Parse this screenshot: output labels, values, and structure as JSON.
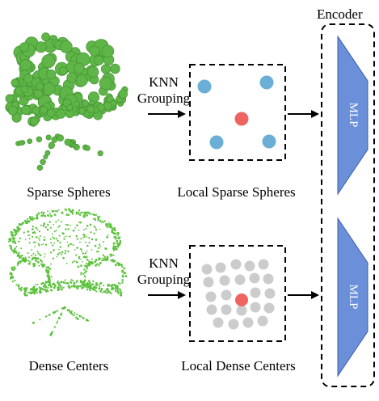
{
  "encoder": {
    "title": "Encoder",
    "mlp_top_label": "MLP",
    "mlp_bottom_label": "MLP",
    "color": "#6b8fd9"
  },
  "top_row": {
    "input_caption": "Sparse Spheres",
    "grouping_line1": "KNN",
    "grouping_line2": "Grouping",
    "group_caption": "Local Sparse Spheres"
  },
  "bottom_row": {
    "input_caption": "Dense Centers",
    "grouping_line1": "KNN",
    "grouping_line2": "Grouping",
    "group_caption": "Local Dense Centers"
  },
  "colors": {
    "sparse_point": "#5fb548",
    "dense_point": "#5cc23c",
    "neighbor_blue": "#6baed6",
    "center_red": "#ef6461",
    "neighbor_gray": "#cccccc"
  },
  "icons": [
    "chair-point-cloud-icon",
    "arrow-right-icon",
    "trapezoid-mlp-icon"
  ]
}
